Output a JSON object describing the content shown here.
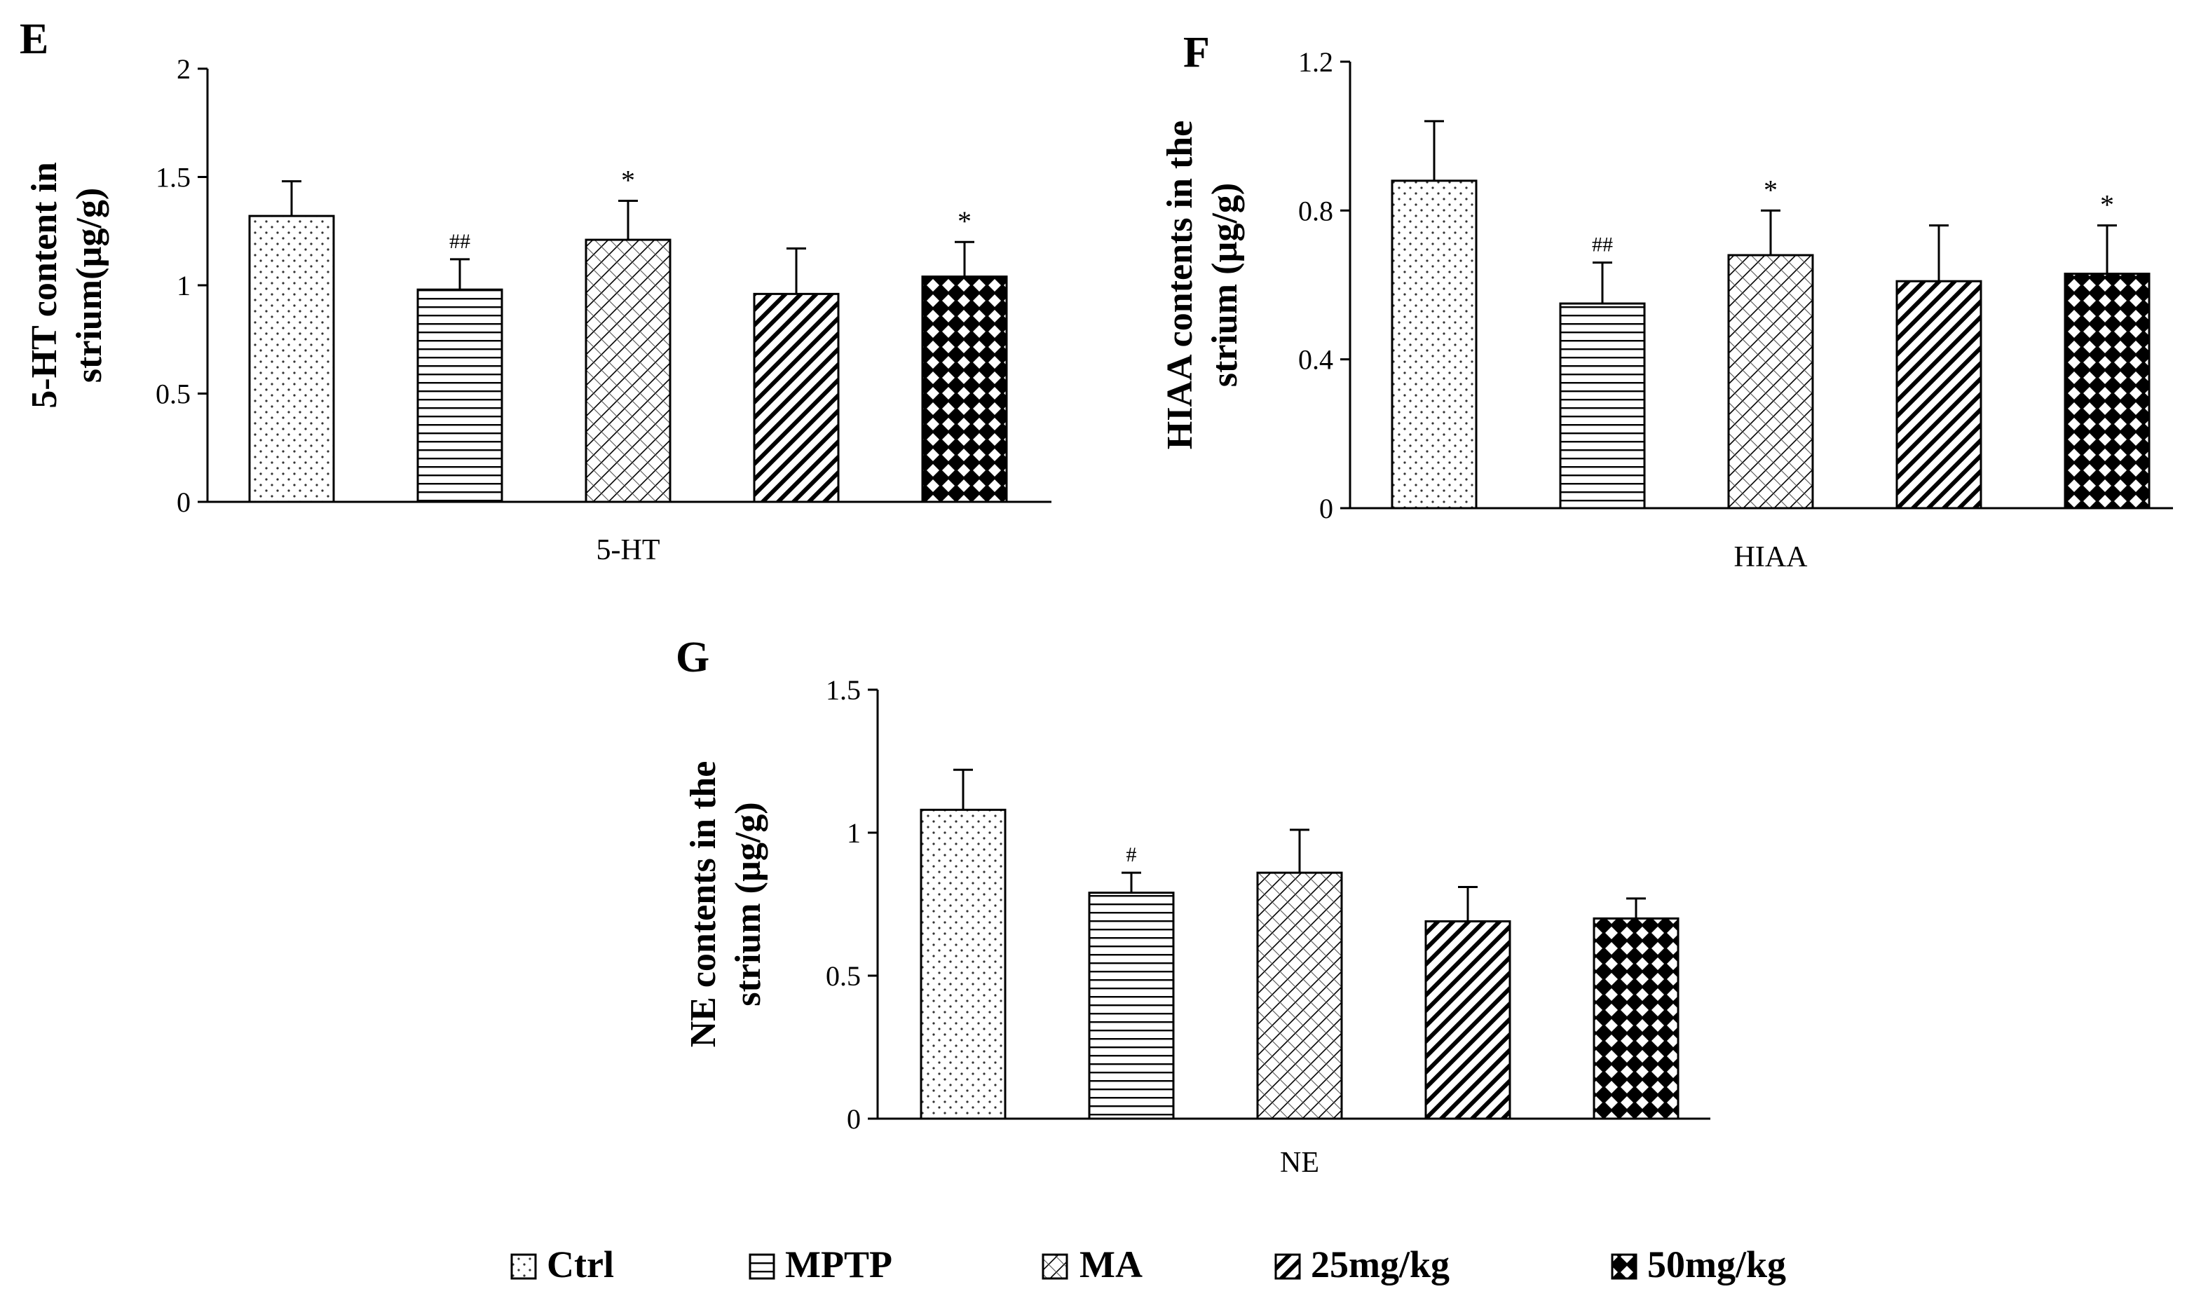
{
  "groups": [
    "Ctrl",
    "MPTP",
    "MA",
    "25mg/kg",
    "50mg/kg"
  ],
  "chart_data": [
    {
      "type": "bar",
      "panel_label": "E",
      "category": "5-HT",
      "ylabel_lines": [
        "5-HT content in",
        "strium(µg/g)"
      ],
      "ylim": [
        0,
        2
      ],
      "yticks": [
        0,
        0.5,
        1,
        1.5,
        2
      ],
      "tick_labels": [
        "0",
        "0.5",
        "1",
        "1.5",
        "2"
      ],
      "values": [
        1.32,
        0.98,
        1.21,
        0.96,
        1.04
      ],
      "errors": [
        0.16,
        0.14,
        0.18,
        0.21,
        0.16
      ],
      "annotations": [
        "",
        "##",
        "*",
        "",
        "*"
      ]
    },
    {
      "type": "bar",
      "panel_label": "F",
      "category": "HIAA",
      "ylabel_lines": [
        "HIAA contents in the",
        "strium (µg/g)"
      ],
      "ylim": [
        0,
        1.2
      ],
      "yticks": [
        0,
        0.4,
        0.8,
        1.2
      ],
      "tick_labels": [
        "0",
        "0.4",
        "0.8",
        "1.2"
      ],
      "values": [
        0.88,
        0.55,
        0.68,
        0.61,
        0.63
      ],
      "errors": [
        0.16,
        0.11,
        0.12,
        0.15,
        0.13
      ],
      "annotations": [
        "",
        "##",
        "*",
        "",
        "*"
      ]
    },
    {
      "type": "bar",
      "panel_label": "G",
      "category": "NE",
      "ylabel_lines": [
        "NE contents in the",
        "strium (µg/g)"
      ],
      "ylim": [
        0,
        1.5
      ],
      "yticks": [
        0,
        0.5,
        1,
        1.5
      ],
      "tick_labels": [
        "0",
        "0.5",
        "1",
        "1.5"
      ],
      "values": [
        1.08,
        0.79,
        0.86,
        0.69,
        0.7
      ],
      "errors": [
        0.14,
        0.07,
        0.15,
        0.12,
        0.07
      ],
      "annotations": [
        "",
        "#",
        "",
        "",
        ""
      ]
    }
  ]
}
